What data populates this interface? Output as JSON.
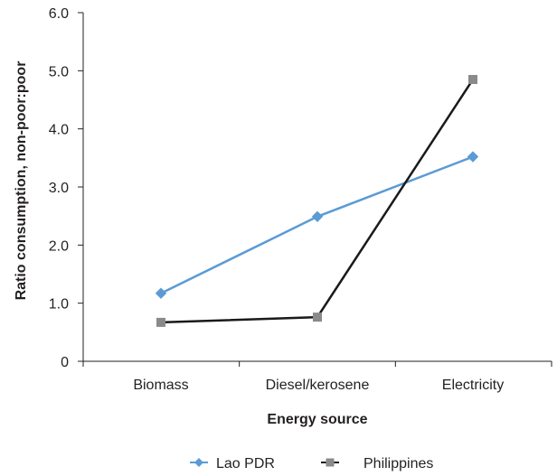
{
  "chart_data": {
    "type": "line",
    "title": "",
    "xlabel": "Energy source",
    "ylabel": "Ratio consumption, non-poor:poor",
    "categories": [
      "Biomass",
      "Diesel/kerosene",
      "Electricity"
    ],
    "ylim": [
      0,
      6
    ],
    "yticks": [
      "0",
      "1.0",
      "2.0",
      "3.0",
      "4.0",
      "5.0",
      "6.0"
    ],
    "ytick_values": [
      0,
      1,
      2,
      3,
      4,
      5,
      6
    ],
    "grid": false,
    "legend_position": "bottom",
    "series": [
      {
        "name": "Lao PDR",
        "values": [
          1.17,
          2.49,
          3.52
        ],
        "color": "#5b9bd5",
        "marker": "diamond"
      },
      {
        "name": "Philippines",
        "values": [
          0.67,
          0.76,
          4.85
        ],
        "color": "#1a1a1a",
        "marker": "square",
        "marker_color": "#8a8a8a"
      }
    ]
  }
}
